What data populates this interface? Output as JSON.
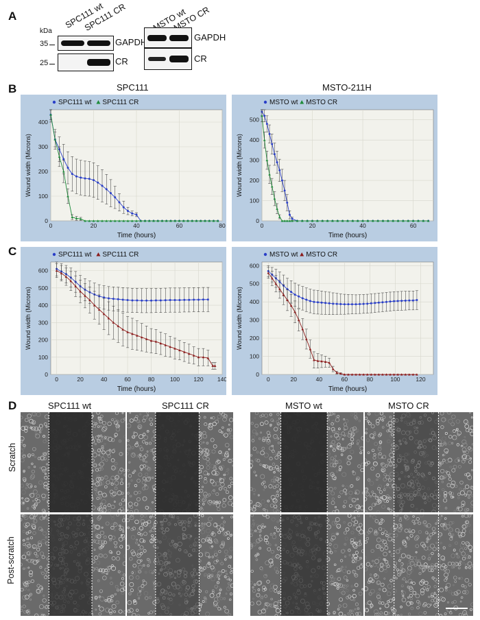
{
  "figure": {
    "panel_letters": [
      "A",
      "B",
      "C",
      "D"
    ],
    "blot": {
      "left_lanes": [
        "SPC111 wt",
        "SPC111 CR"
      ],
      "right_lanes": [
        "MSTO wt",
        "MSTO CR"
      ],
      "kda": "kDa",
      "markers": [
        "35",
        "25"
      ],
      "proteins": [
        "GAPDH",
        "CR",
        "GAPDH",
        "CR"
      ]
    },
    "microscopy": {
      "conditions": [
        "SPC111 wt",
        "SPC111 CR",
        "MSTO wt",
        "MSTO CR"
      ],
      "rows": [
        "Scratch",
        "Post-scratch"
      ],
      "dark_gap_fraction": {
        "scratch": [
          0.95,
          0.92,
          0.95,
          0.45
        ],
        "post_scratch": [
          0.75,
          0.45,
          0.7,
          0.0
        ]
      }
    }
  },
  "chart_data": [
    {
      "type": "line",
      "panel": "B",
      "title": "SPC111",
      "xlabel": "Time (hours)",
      "ylabel": "Wound width (Microns)",
      "xlim": [
        0,
        80
      ],
      "ylim": [
        0,
        450
      ],
      "xticks": [
        0,
        20,
        40,
        60,
        80
      ],
      "yticks": [
        0,
        100,
        200,
        300,
        400
      ],
      "legend": "top-left",
      "series": [
        {
          "name": "SPC111 wt",
          "color": "#2a3fc8",
          "marker": "circle",
          "x": [
            0,
            2,
            4,
            6,
            8,
            10,
            12,
            14,
            16,
            18,
            20,
            22,
            24,
            26,
            28,
            30,
            32,
            34,
            36,
            38,
            40,
            42,
            44,
            46,
            48,
            50,
            52,
            54,
            56,
            58,
            60,
            62,
            64,
            66,
            68,
            70,
            72,
            74,
            76,
            78
          ],
          "y": [
            430,
            330,
            290,
            250,
            215,
            190,
            180,
            175,
            172,
            170,
            165,
            155,
            142,
            128,
            112,
            95,
            75,
            55,
            40,
            30,
            25,
            0,
            0,
            0,
            0,
            0,
            0,
            0,
            0,
            0,
            0,
            0,
            0,
            0,
            0,
            0,
            0,
            0,
            0,
            0
          ],
          "err": [
            30,
            40,
            50,
            60,
            65,
            70,
            70,
            70,
            70,
            70,
            70,
            68,
            65,
            60,
            55,
            45,
            35,
            25,
            15,
            10,
            8,
            0,
            0,
            0,
            0,
            0,
            0,
            0,
            0,
            0,
            0,
            0,
            0,
            0,
            0,
            0,
            0,
            0,
            0,
            0
          ]
        },
        {
          "name": "SPC111 CR",
          "color": "#1e8c3a",
          "marker": "triangle",
          "x": [
            0,
            2,
            4,
            6,
            8,
            10,
            12,
            14,
            16,
            18,
            20,
            22,
            24,
            26,
            28,
            30,
            32,
            34,
            36,
            38,
            40,
            42,
            44,
            46,
            48,
            50,
            52,
            54,
            56,
            58,
            60,
            62,
            64,
            66,
            68,
            70,
            72,
            74,
            76,
            78
          ],
          "y": [
            430,
            330,
            260,
            200,
            100,
            15,
            10,
            8,
            0,
            0,
            0,
            0,
            0,
            0,
            0,
            0,
            0,
            0,
            0,
            0,
            0,
            0,
            0,
            0,
            0,
            0,
            0,
            0,
            0,
            0,
            0,
            0,
            0,
            0,
            0,
            0,
            0,
            0,
            0,
            0
          ],
          "err": [
            20,
            30,
            40,
            45,
            30,
            10,
            8,
            6,
            0,
            0,
            0,
            0,
            0,
            0,
            0,
            0,
            0,
            0,
            0,
            0,
            0,
            0,
            0,
            0,
            0,
            0,
            0,
            0,
            0,
            0,
            0,
            0,
            0,
            0,
            0,
            0,
            0,
            0,
            0,
            0
          ]
        }
      ]
    },
    {
      "type": "line",
      "panel": "B",
      "title": "MSTO-211H",
      "xlabel": "Time (hours)",
      "ylabel": "Wound width (Microns)",
      "xlim": [
        0,
        68
      ],
      "ylim": [
        0,
        550
      ],
      "xticks": [
        0,
        20,
        40,
        60
      ],
      "yticks": [
        0,
        100,
        200,
        300,
        400,
        500
      ],
      "legend": "top-left",
      "series": [
        {
          "name": "MSTO wt",
          "color": "#2a3fc8",
          "marker": "circle",
          "x": [
            0,
            1,
            2,
            3,
            4,
            5,
            6,
            7,
            8,
            9,
            10,
            11,
            12,
            14,
            16,
            18,
            20,
            22,
            24,
            26,
            28,
            30,
            32,
            34,
            36,
            38,
            40,
            42,
            44,
            46,
            48,
            50,
            52,
            54,
            56,
            58,
            60,
            62,
            64,
            66
          ],
          "y": [
            540,
            520,
            480,
            430,
            380,
            330,
            290,
            250,
            200,
            150,
            90,
            30,
            10,
            0,
            0,
            0,
            0,
            0,
            0,
            0,
            0,
            0,
            0,
            0,
            0,
            0,
            0,
            0,
            0,
            0,
            0,
            0,
            0,
            0,
            0,
            0,
            0,
            0,
            0,
            0
          ],
          "err": [
            20,
            30,
            40,
            45,
            50,
            55,
            55,
            55,
            55,
            50,
            40,
            20,
            8,
            0,
            0,
            0,
            0,
            0,
            0,
            0,
            0,
            0,
            0,
            0,
            0,
            0,
            0,
            0,
            0,
            0,
            0,
            0,
            0,
            0,
            0,
            0,
            0,
            0,
            0,
            0
          ]
        },
        {
          "name": "MSTO CR",
          "color": "#1e8c3a",
          "marker": "triangle",
          "x": [
            0,
            1,
            2,
            3,
            4,
            5,
            6,
            7,
            8,
            9,
            10,
            11,
            12,
            14,
            16,
            18,
            20,
            22,
            24,
            26,
            28,
            30,
            32,
            34,
            36,
            38,
            40,
            42,
            44,
            46,
            48,
            50,
            52,
            54,
            56,
            58,
            60,
            62,
            64,
            66
          ],
          "y": [
            520,
            400,
            300,
            230,
            170,
            110,
            60,
            20,
            0,
            0,
            0,
            0,
            0,
            0,
            0,
            0,
            0,
            0,
            0,
            0,
            0,
            0,
            0,
            0,
            0,
            0,
            0,
            0,
            0,
            0,
            0,
            0,
            0,
            0,
            0,
            0,
            0,
            0,
            0,
            0
          ],
          "err": [
            30,
            40,
            45,
            45,
            40,
            35,
            25,
            10,
            0,
            0,
            0,
            0,
            0,
            0,
            0,
            0,
            0,
            0,
            0,
            0,
            0,
            0,
            0,
            0,
            0,
            0,
            0,
            0,
            0,
            0,
            0,
            0,
            0,
            0,
            0,
            0,
            0,
            0,
            0,
            0
          ]
        }
      ]
    },
    {
      "type": "line",
      "panel": "C",
      "title": "",
      "xlabel": "Time (hours)",
      "ylabel": "Wound width (Microns)",
      "xlim": [
        -5,
        140
      ],
      "ylim": [
        0,
        650
      ],
      "xticks": [
        0,
        20,
        40,
        60,
        80,
        100,
        120,
        140
      ],
      "yticks": [
        0,
        100,
        200,
        300,
        400,
        500,
        600
      ],
      "legend": "top-left",
      "series": [
        {
          "name": "SPC111 wt",
          "color": "#2a3fc8",
          "marker": "circle",
          "x": [
            0,
            4,
            8,
            12,
            16,
            20,
            24,
            28,
            32,
            36,
            40,
            44,
            48,
            52,
            56,
            60,
            64,
            68,
            72,
            76,
            80,
            84,
            88,
            92,
            96,
            100,
            104,
            108,
            112,
            116,
            120,
            124,
            128
          ],
          "y": [
            610,
            595,
            580,
            560,
            535,
            510,
            490,
            475,
            462,
            452,
            445,
            440,
            437,
            435,
            432,
            430,
            428,
            428,
            427,
            427,
            427,
            428,
            428,
            429,
            430,
            430,
            430,
            431,
            431,
            432,
            432,
            433,
            433
          ],
          "err": [
            40,
            45,
            50,
            55,
            60,
            62,
            64,
            65,
            66,
            67,
            68,
            68,
            69,
            69,
            70,
            70,
            70,
            70,
            70,
            70,
            70,
            70,
            70,
            70,
            70,
            70,
            70,
            70,
            70,
            70,
            70,
            70,
            70
          ]
        },
        {
          "name": "SPC111 CR",
          "color": "#8b1a1a",
          "marker": "triangle",
          "x": [
            0,
            4,
            8,
            12,
            16,
            20,
            24,
            28,
            32,
            36,
            40,
            44,
            48,
            52,
            56,
            60,
            64,
            68,
            72,
            76,
            80,
            84,
            88,
            92,
            96,
            100,
            104,
            108,
            112,
            116,
            120,
            124,
            128,
            132,
            134
          ],
          "y": [
            600,
            585,
            565,
            540,
            510,
            480,
            455,
            430,
            400,
            375,
            350,
            325,
            300,
            280,
            260,
            245,
            235,
            225,
            215,
            205,
            195,
            190,
            180,
            170,
            160,
            150,
            140,
            130,
            120,
            110,
            100,
            100,
            95,
            50,
            50
          ],
          "err": [
            40,
            45,
            50,
            55,
            60,
            65,
            70,
            75,
            80,
            85,
            90,
            95,
            95,
            95,
            95,
            90,
            90,
            85,
            80,
            75,
            70,
            70,
            65,
            65,
            60,
            60,
            55,
            55,
            55,
            50,
            50,
            50,
            45,
            20,
            20
          ]
        }
      ]
    },
    {
      "type": "line",
      "panel": "C",
      "title": "",
      "xlabel": "Time (hours)",
      "ylabel": "Wound width (Microns)",
      "xlim": [
        -5,
        130
      ],
      "ylim": [
        0,
        620
      ],
      "xticks": [
        0,
        20,
        40,
        60,
        80,
        100,
        120
      ],
      "yticks": [
        0,
        100,
        200,
        300,
        400,
        500,
        600
      ],
      "legend": "top-left",
      "series": [
        {
          "name": "MSTO wt",
          "color": "#2a3fc8",
          "marker": "circle",
          "x": [
            0,
            3,
            6,
            9,
            12,
            15,
            18,
            21,
            24,
            27,
            30,
            33,
            36,
            39,
            42,
            45,
            48,
            51,
            54,
            57,
            60,
            63,
            66,
            69,
            72,
            75,
            78,
            81,
            84,
            87,
            90,
            93,
            96,
            99,
            102,
            105,
            108,
            111,
            114,
            117
          ],
          "y": [
            570,
            550,
            530,
            510,
            490,
            470,
            455,
            440,
            430,
            420,
            412,
            405,
            400,
            398,
            396,
            394,
            392,
            390,
            389,
            388,
            387,
            387,
            387,
            387,
            388,
            389,
            390,
            392,
            394,
            396,
            398,
            400,
            402,
            404,
            405,
            406,
            407,
            408,
            408,
            410
          ],
          "err": [
            30,
            40,
            50,
            55,
            58,
            60,
            62,
            63,
            64,
            65,
            65,
            65,
            65,
            65,
            64,
            63,
            62,
            60,
            58,
            56,
            55,
            54,
            53,
            52,
            52,
            52,
            52,
            52,
            52,
            52,
            52,
            52,
            52,
            52,
            52,
            52,
            52,
            52,
            52,
            52
          ]
        },
        {
          "name": "MSTO CR",
          "color": "#8b1a1a",
          "marker": "triangle",
          "x": [
            0,
            3,
            6,
            9,
            12,
            15,
            18,
            21,
            24,
            27,
            30,
            33,
            36,
            39,
            42,
            45,
            48,
            51,
            54,
            57,
            60,
            63,
            66,
            69,
            72,
            75,
            78,
            81,
            84,
            87,
            90,
            93,
            96,
            99,
            102,
            105,
            108,
            111,
            114,
            117
          ],
          "y": [
            560,
            530,
            500,
            470,
            440,
            410,
            380,
            345,
            300,
            250,
            195,
            140,
            80,
            75,
            73,
            70,
            65,
            30,
            10,
            5,
            0,
            0,
            0,
            0,
            0,
            0,
            0,
            0,
            0,
            0,
            0,
            0,
            0,
            0,
            0,
            0,
            0,
            0,
            0,
            0
          ],
          "err": [
            30,
            40,
            45,
            50,
            55,
            58,
            60,
            60,
            60,
            58,
            55,
            50,
            45,
            40,
            35,
            30,
            25,
            15,
            8,
            4,
            0,
            0,
            0,
            0,
            0,
            0,
            0,
            0,
            0,
            0,
            0,
            0,
            0,
            0,
            0,
            0,
            0,
            0,
            0,
            0
          ]
        }
      ]
    }
  ]
}
